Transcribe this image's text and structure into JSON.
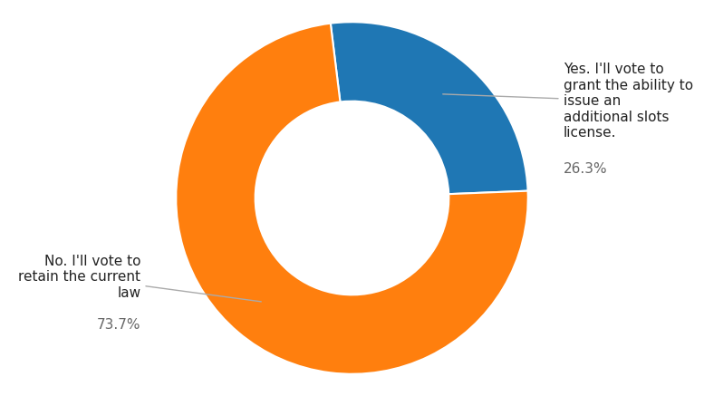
{
  "chart_data": {
    "type": "donut",
    "categories": [
      "Yes. I'll vote to\ngrant the ability to\nissue an\nadditional slots\nlicense.",
      "No. I'll vote to\nretain the current\nlaw"
    ],
    "values": [
      26.3,
      73.7
    ],
    "value_labels": [
      "26.3%",
      "73.7%"
    ],
    "data_labels": true
  }
}
